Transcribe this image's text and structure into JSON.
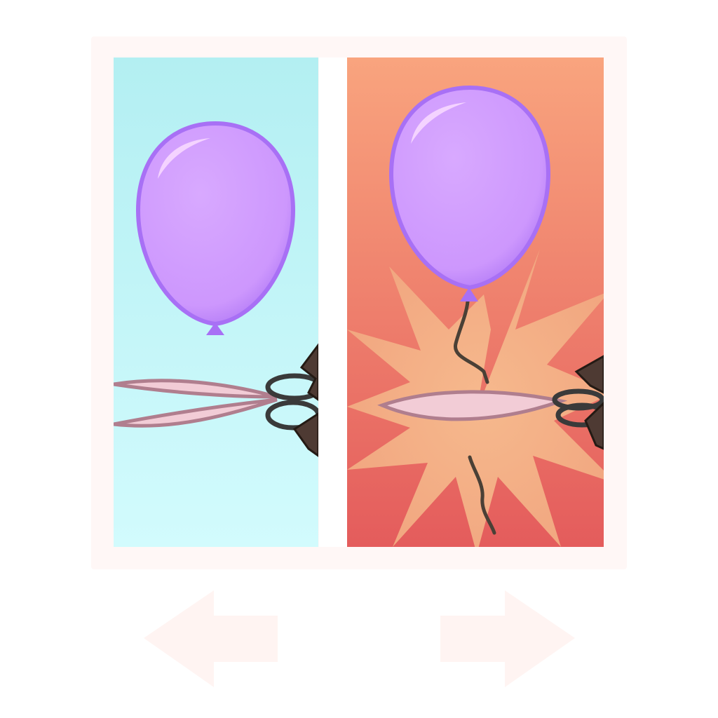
{
  "colors": {
    "frame": "#fff7f6",
    "left_bg_top": "#b3eff2",
    "left_bg_bottom": "#d2fbfd",
    "right_bg_top": "#f9a47e",
    "right_bg_bottom": "#e45c5c",
    "burst": "#f4b48a",
    "balloon_fill": "#cf99fd",
    "balloon_edge": "#a870f5",
    "string": "#4a4036",
    "blade_fill": "#f2ccd6",
    "blade_edge": "#b07e8e",
    "handle": "#3a3a3a",
    "hand": "#4e3a33",
    "arrow": "#fff4f2"
  },
  "panels": [
    {
      "name": "before",
      "description_icon": "balloon-with-scissors-open-icon"
    },
    {
      "name": "after",
      "description_icon": "balloon-string-cut-burst-icon"
    }
  ],
  "navigation": {
    "prev_icon": "arrow-left-icon",
    "next_icon": "arrow-right-icon"
  }
}
